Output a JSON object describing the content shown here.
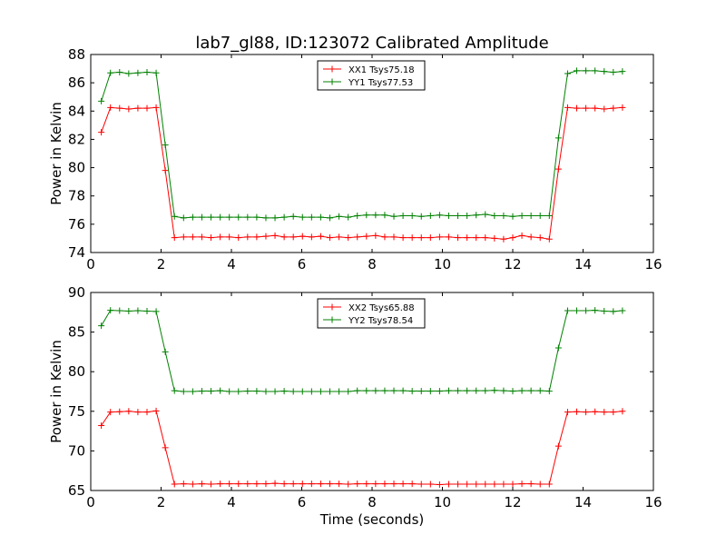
{
  "figure": {
    "title": "lab7_gl88, ID:123072 Calibrated Amplitude",
    "xlabel": "Time (seconds)"
  },
  "chart_data": [
    {
      "type": "line",
      "ylabel": "Power in Kelvin",
      "xlim": [
        0,
        16
      ],
      "ylim": [
        74,
        88
      ],
      "xticks": [
        0,
        2,
        4,
        6,
        8,
        10,
        12,
        14,
        16
      ],
      "yticks": [
        74,
        76,
        78,
        80,
        82,
        84,
        86,
        88
      ],
      "grid": false,
      "legend": "top-center",
      "x": [
        0.3,
        0.56,
        0.82,
        1.08,
        1.34,
        1.6,
        1.86,
        2.12,
        2.38,
        2.64,
        2.9,
        3.16,
        3.42,
        3.68,
        3.94,
        4.2,
        4.46,
        4.72,
        4.98,
        5.24,
        5.5,
        5.76,
        6.02,
        6.28,
        6.54,
        6.8,
        7.06,
        7.32,
        7.58,
        7.84,
        8.1,
        8.36,
        8.62,
        8.88,
        9.14,
        9.4,
        9.66,
        9.92,
        10.18,
        10.44,
        10.7,
        10.96,
        11.22,
        11.48,
        11.74,
        12.0,
        12.26,
        12.52,
        12.78,
        13.04,
        13.3,
        13.56,
        13.82,
        14.08,
        14.34,
        14.6,
        14.86,
        15.12
      ],
      "series": [
        {
          "name": "XX1 Tsys75.18",
          "color": "#ff0000",
          "values": [
            82.5,
            84.25,
            84.2,
            84.15,
            84.2,
            84.2,
            84.25,
            79.8,
            75.05,
            75.1,
            75.1,
            75.1,
            75.05,
            75.1,
            75.1,
            75.05,
            75.1,
            75.1,
            75.15,
            75.2,
            75.1,
            75.1,
            75.15,
            75.1,
            75.15,
            75.05,
            75.1,
            75.05,
            75.1,
            75.15,
            75.2,
            75.1,
            75.1,
            75.05,
            75.05,
            75.05,
            75.05,
            75.1,
            75.1,
            75.05,
            75.05,
            75.05,
            75.05,
            75.0,
            74.95,
            75.05,
            75.2,
            75.1,
            75.05,
            74.95,
            79.9,
            84.25,
            84.2,
            84.2,
            84.2,
            84.15,
            84.2,
            84.25
          ]
        },
        {
          "name": "YY1 Tsys77.53",
          "color": "#008000",
          "values": [
            84.7,
            86.7,
            86.75,
            86.65,
            86.7,
            86.75,
            86.7,
            81.6,
            76.55,
            76.45,
            76.5,
            76.5,
            76.5,
            76.5,
            76.5,
            76.5,
            76.5,
            76.5,
            76.45,
            76.45,
            76.5,
            76.55,
            76.5,
            76.5,
            76.5,
            76.45,
            76.55,
            76.5,
            76.6,
            76.65,
            76.65,
            76.65,
            76.55,
            76.6,
            76.6,
            76.55,
            76.6,
            76.65,
            76.6,
            76.6,
            76.6,
            76.65,
            76.7,
            76.6,
            76.6,
            76.55,
            76.6,
            76.6,
            76.6,
            76.6,
            82.1,
            86.65,
            86.85,
            86.85,
            86.85,
            86.8,
            86.75,
            86.8
          ]
        }
      ]
    },
    {
      "type": "line",
      "ylabel": "Power in Kelvin",
      "xlim": [
        0,
        16
      ],
      "ylim": [
        65,
        90
      ],
      "xticks": [
        0,
        2,
        4,
        6,
        8,
        10,
        12,
        14,
        16
      ],
      "yticks": [
        65,
        70,
        75,
        80,
        85,
        90
      ],
      "grid": false,
      "legend": "top-center",
      "x": [
        0.3,
        0.56,
        0.82,
        1.08,
        1.34,
        1.6,
        1.86,
        2.12,
        2.38,
        2.64,
        2.9,
        3.16,
        3.42,
        3.68,
        3.94,
        4.2,
        4.46,
        4.72,
        4.98,
        5.24,
        5.5,
        5.76,
        6.02,
        6.28,
        6.54,
        6.8,
        7.06,
        7.32,
        7.58,
        7.84,
        8.1,
        8.36,
        8.62,
        8.88,
        9.14,
        9.4,
        9.66,
        9.92,
        10.18,
        10.44,
        10.7,
        10.96,
        11.22,
        11.48,
        11.74,
        12.0,
        12.26,
        12.52,
        12.78,
        13.04,
        13.3,
        13.56,
        13.82,
        14.08,
        14.34,
        14.6,
        14.86,
        15.12
      ],
      "series": [
        {
          "name": "XX2 Tsys65.88",
          "color": "#ff0000",
          "values": [
            73.2,
            74.9,
            74.95,
            75.0,
            74.9,
            74.9,
            75.05,
            70.4,
            65.8,
            65.85,
            65.8,
            65.85,
            65.8,
            65.85,
            65.85,
            65.85,
            65.85,
            65.85,
            65.85,
            65.9,
            65.85,
            65.85,
            65.85,
            65.85,
            65.85,
            65.85,
            65.85,
            65.8,
            65.85,
            65.85,
            65.85,
            65.85,
            65.85,
            65.85,
            65.85,
            65.8,
            65.8,
            65.75,
            65.8,
            65.8,
            65.8,
            65.8,
            65.8,
            65.8,
            65.8,
            65.8,
            65.85,
            65.85,
            65.8,
            65.8,
            70.6,
            74.9,
            74.95,
            74.9,
            74.95,
            74.9,
            74.9,
            75.0
          ]
        },
        {
          "name": "YY2 Tsys78.54",
          "color": "#008000",
          "values": [
            85.8,
            87.75,
            87.7,
            87.65,
            87.7,
            87.65,
            87.6,
            82.5,
            77.6,
            77.5,
            77.5,
            77.55,
            77.55,
            77.6,
            77.5,
            77.5,
            77.55,
            77.55,
            77.5,
            77.5,
            77.55,
            77.5,
            77.5,
            77.5,
            77.5,
            77.5,
            77.5,
            77.5,
            77.6,
            77.6,
            77.6,
            77.6,
            77.6,
            77.6,
            77.55,
            77.55,
            77.55,
            77.55,
            77.6,
            77.6,
            77.6,
            77.6,
            77.6,
            77.65,
            77.6,
            77.55,
            77.6,
            77.6,
            77.6,
            77.55,
            83.0,
            87.7,
            87.7,
            87.7,
            87.75,
            87.65,
            87.6,
            87.7
          ]
        }
      ]
    }
  ]
}
